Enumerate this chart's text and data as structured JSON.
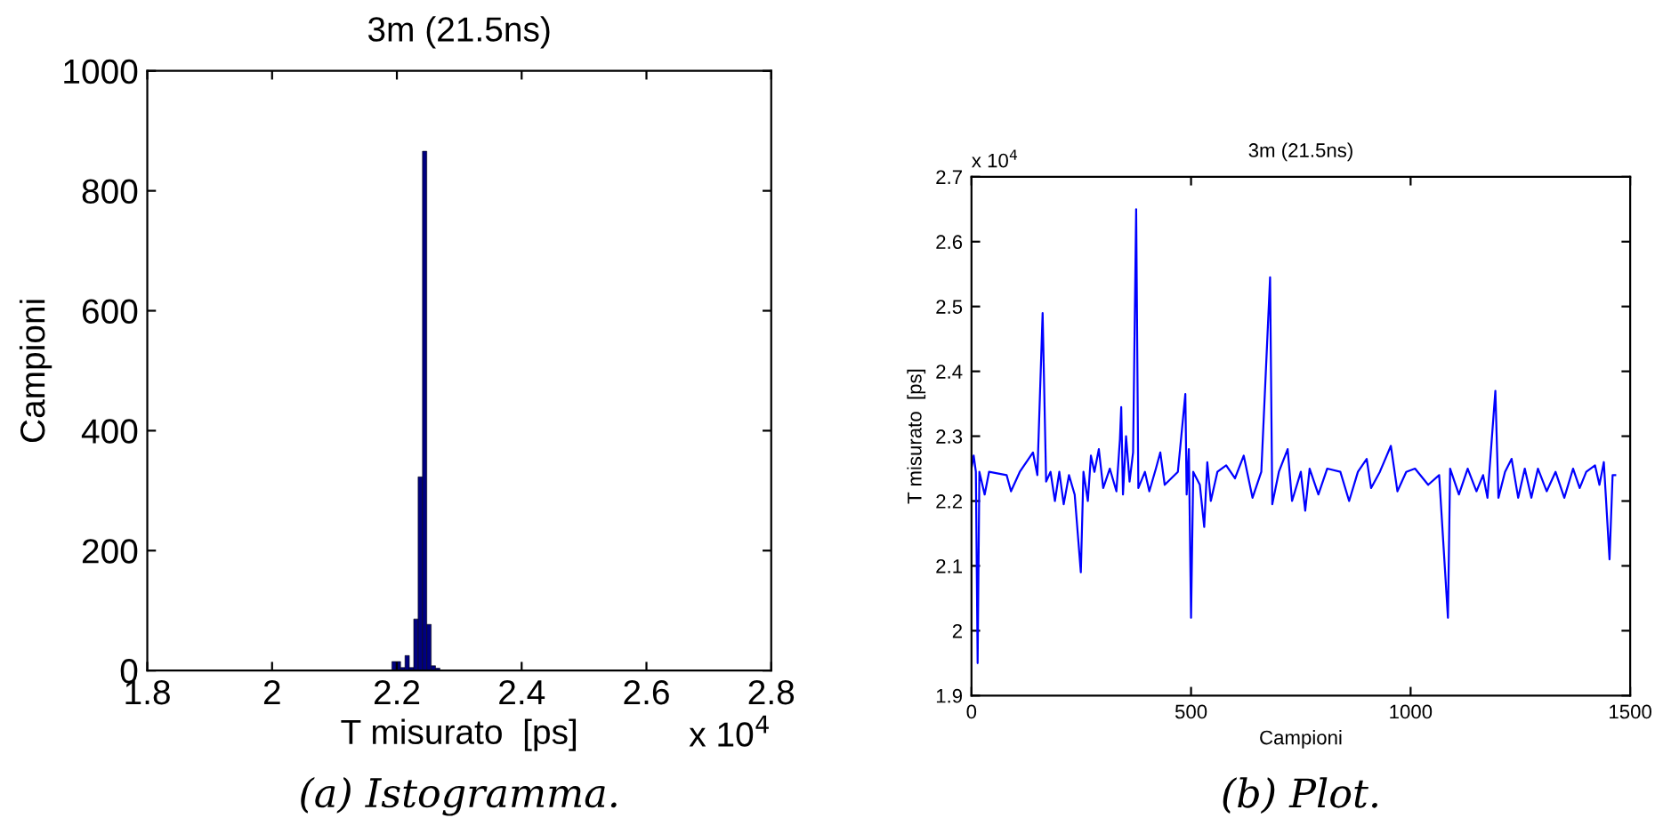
{
  "chart_data": [
    {
      "type": "histogram",
      "title": "3m (21.5ns)",
      "xlabel": "T misurato  [ps]",
      "ylabel": "Campioni",
      "annotations": [
        "x 10$^{4}$",
        "(a) Istogramma."
      ],
      "bins": [
        2.192,
        2.199,
        2.206,
        2.213,
        2.22,
        2.227,
        2.234,
        2.241,
        2.248,
        2.255,
        2.262,
        2.269
      ],
      "values": [
        15,
        15,
        5,
        25,
        5,
        86,
        323,
        866,
        77,
        8,
        4
      ],
      "color": "#00007f",
      "xlim": [
        1.8,
        2.8
      ],
      "xticks": [
        1.8,
        2,
        2.2,
        2.4,
        2.6,
        2.8
      ],
      "ylim": [
        0,
        1000
      ],
      "yticks": [
        0,
        200,
        400,
        600,
        800,
        1000
      ]
    },
    {
      "type": "line",
      "title": "3m (21.5ns)",
      "xlabel": "Campioni",
      "ylabel": "T misurato  [ps]",
      "annotations": [
        "x 10$^{4}$",
        "(b) Plot."
      ],
      "color": "#0000ff",
      "x": [
        0,
        5,
        10,
        14,
        18,
        30,
        40,
        80,
        90,
        110,
        140,
        150,
        162,
        170,
        180,
        190,
        200,
        210,
        222,
        235,
        249,
        255,
        265,
        272,
        280,
        290,
        300,
        315,
        330,
        338,
        341,
        345,
        352,
        360,
        368,
        375,
        380,
        395,
        405,
        420,
        430,
        440,
        470,
        475,
        487,
        490,
        495,
        500,
        505,
        520,
        530,
        537,
        545,
        560,
        580,
        600,
        620,
        640,
        660,
        680,
        685,
        700,
        720,
        730,
        750,
        760,
        770,
        790,
        810,
        840,
        860,
        880,
        900,
        910,
        930,
        955,
        970,
        990,
        1010,
        1040,
        1065,
        1085,
        1090,
        1110,
        1130,
        1150,
        1165,
        1175,
        1193,
        1200,
        1215,
        1230,
        1245,
        1260,
        1275,
        1290,
        1310,
        1330,
        1350,
        1370,
        1385,
        1400,
        1420,
        1430,
        1440,
        1453,
        1460,
        1466
      ],
      "values": [
        2.25,
        2.27,
        2.245,
        1.95,
        2.245,
        2.21,
        2.245,
        2.24,
        2.215,
        2.245,
        2.275,
        2.24,
        2.49,
        2.23,
        2.245,
        2.2,
        2.245,
        2.195,
        2.24,
        2.21,
        2.09,
        2.245,
        2.2,
        2.27,
        2.245,
        2.28,
        2.22,
        2.25,
        2.215,
        2.295,
        2.345,
        2.21,
        2.3,
        2.23,
        2.275,
        2.65,
        2.22,
        2.245,
        2.215,
        2.25,
        2.275,
        2.225,
        2.245,
        2.28,
        2.365,
        2.21,
        2.28,
        2.02,
        2.245,
        2.225,
        2.16,
        2.26,
        2.2,
        2.245,
        2.255,
        2.235,
        2.27,
        2.205,
        2.245,
        2.545,
        2.195,
        2.245,
        2.28,
        2.2,
        2.245,
        2.185,
        2.25,
        2.21,
        2.25,
        2.245,
        2.2,
        2.245,
        2.265,
        2.22,
        2.245,
        2.285,
        2.215,
        2.245,
        2.25,
        2.225,
        2.24,
        2.02,
        2.25,
        2.21,
        2.25,
        2.215,
        2.24,
        2.205,
        2.37,
        2.205,
        2.245,
        2.265,
        2.205,
        2.25,
        2.205,
        2.25,
        2.215,
        2.245,
        2.205,
        2.25,
        2.22,
        2.245,
        2.255,
        2.225,
        2.26,
        2.11,
        2.24,
        2.24
      ],
      "xlim": [
        0,
        1500
      ],
      "xticks": [
        0,
        500,
        1000,
        1500
      ],
      "ylim": [
        1.9,
        2.7
      ],
      "yticks": [
        1.9,
        2,
        2.1,
        2.2,
        2.3,
        2.4,
        2.5,
        2.6,
        2.7
      ]
    }
  ]
}
